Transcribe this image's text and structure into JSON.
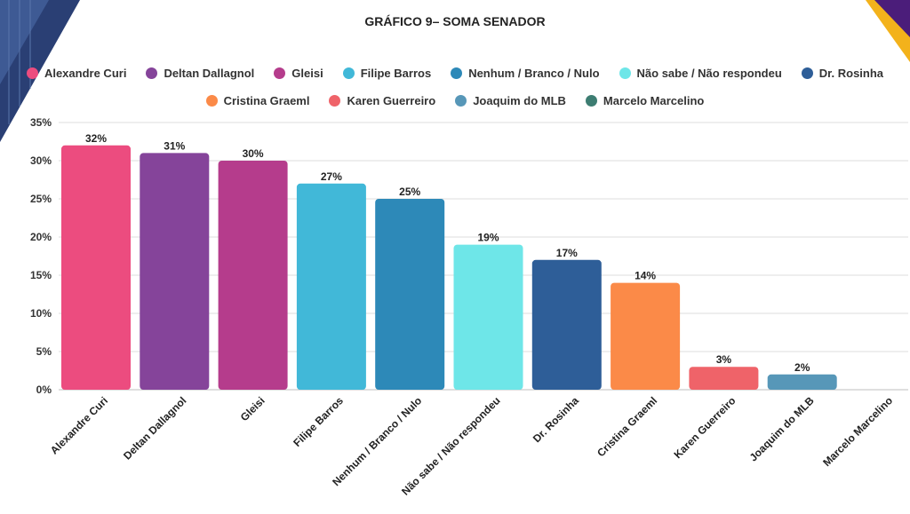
{
  "chart_data": {
    "type": "bar",
    "title": "GRÁFICO 9– SOMA SENADOR",
    "categories": [
      "Alexandre Curi",
      "Deltan Dallagnol",
      "Gleisi",
      "Filipe Barros",
      "Nenhum / Branco / Nulo",
      "Não sabe / Não respondeu",
      "Dr. Rosinha",
      "Cristina Graeml",
      "Karen Guerreiro",
      "Joaquim do MLB",
      "Marcelo Marcelino"
    ],
    "values": [
      32,
      31,
      30,
      27,
      25,
      19,
      17,
      14,
      3,
      2,
      0
    ],
    "data_labels": [
      "32%",
      "31%",
      "30%",
      "27%",
      "25%",
      "19%",
      "17%",
      "14%",
      "3%",
      "2%",
      ""
    ],
    "colors": [
      "#ec4c7f",
      "#85449a",
      "#b53c8c",
      "#41b8d8",
      "#2d89b8",
      "#6ee6e8",
      "#2e5e98",
      "#fb8a48",
      "#ef6369",
      "#5797b8",
      "#3d7d72"
    ],
    "ylim": [
      0,
      35
    ],
    "yticks": [
      0,
      5,
      10,
      15,
      20,
      25,
      30,
      35
    ],
    "ytick_labels": [
      "0%",
      "5%",
      "10%",
      "15%",
      "20%",
      "25%",
      "30%",
      "35%"
    ],
    "grid": true,
    "legend_position": "top"
  }
}
